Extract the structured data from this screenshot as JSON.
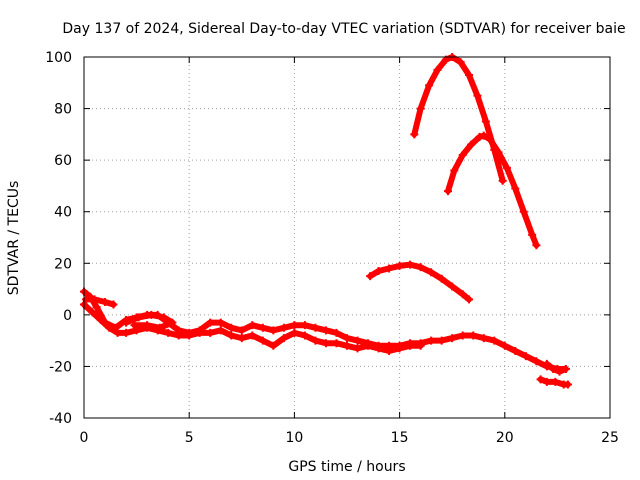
{
  "chart_data": {
    "type": "scatter",
    "title": "Day 137 of 2024, Sidereal Day-to-day VTEC variation (SDTVAR) for receiver baie",
    "xlabel": "GPS time / hours",
    "ylabel": "SDTVAR / TECUs",
    "xlim": [
      0,
      25
    ],
    "ylim": [
      -40,
      100
    ],
    "xticks": [
      0,
      5,
      10,
      15,
      20,
      25
    ],
    "yticks": [
      -40,
      -20,
      0,
      20,
      40,
      60,
      80,
      100
    ],
    "grid": true,
    "series_color": "#ff0000",
    "series": [
      {
        "name": "arc-peak-100",
        "x": [
          15.7,
          16.0,
          16.4,
          16.8,
          17.2,
          17.5,
          17.9,
          18.3,
          18.7,
          19.1,
          19.5,
          19.9
        ],
        "y": [
          70,
          80,
          89,
          95,
          99,
          100,
          98,
          93,
          85,
          75,
          64,
          52
        ]
      },
      {
        "name": "arc-peak-70",
        "x": [
          17.3,
          17.6,
          18.0,
          18.4,
          18.8,
          19.0,
          19.3,
          19.7,
          20.1,
          20.5,
          20.9,
          21.3,
          21.5
        ],
        "y": [
          48,
          56,
          62,
          66,
          69,
          69.5,
          68,
          63,
          57,
          49,
          40,
          31,
          27
        ]
      },
      {
        "name": "arc-peak-20",
        "x": [
          13.6,
          14.0,
          14.5,
          15.0,
          15.5,
          16.0,
          16.5,
          17.0,
          17.5,
          18.0,
          18.3
        ],
        "y": [
          15,
          17,
          18,
          19,
          19.5,
          18.5,
          16.5,
          14,
          11,
          8,
          6
        ]
      },
      {
        "name": "arc-upper-band",
        "x": [
          0,
          0.3,
          0.6,
          1.0,
          1.5,
          2.0,
          2.5,
          3.0,
          3.5,
          4.0,
          4.5,
          5.0,
          5.5,
          6.0,
          6.5,
          7.0,
          7.5,
          8.0,
          8.5,
          9.0,
          9.5,
          10.0,
          10.5,
          11.0,
          11.5,
          12.0,
          12.5,
          13.0,
          13.5,
          14.0,
          14.5,
          15.0,
          15.5,
          16.0,
          16.5,
          17.0,
          17.5,
          18.0,
          18.5,
          19.0,
          19.5,
          20.0,
          20.5,
          21.0,
          21.5,
          22.0,
          22.5,
          22.9
        ],
        "y": [
          9,
          7,
          3,
          -3,
          -5,
          -2,
          -1,
          0,
          0,
          -3,
          -6,
          -7,
          -6,
          -3,
          -3,
          -5,
          -6,
          -4,
          -5,
          -6,
          -5,
          -4,
          -4,
          -5,
          -6,
          -7,
          -9,
          -10,
          -11,
          -12,
          -12,
          -12,
          -11,
          -11,
          -10,
          -10,
          -9,
          -8,
          -8,
          -9,
          -10,
          -12,
          -14,
          -16,
          -18,
          -20,
          -21,
          -21
        ]
      },
      {
        "name": "arc-lower-band",
        "x": [
          0,
          0.4,
          0.8,
          1.2,
          1.6,
          2.0,
          2.5,
          3.0,
          3.5,
          4.0,
          4.5,
          5.0,
          5.5,
          6.0,
          6.5,
          7.0,
          7.5,
          8.0,
          8.5,
          9.0,
          9.5,
          10.0,
          10.5,
          11.0,
          11.5,
          12.0,
          12.5,
          13.0,
          13.5,
          14.0,
          14.5,
          15.0,
          15.5,
          16.0
        ],
        "y": [
          4,
          1,
          -2,
          -5,
          -7,
          -7,
          -6,
          -5,
          -6,
          -7,
          -8,
          -8,
          -7,
          -7,
          -6,
          -8,
          -9,
          -8,
          -10,
          -12,
          -9,
          -7,
          -8,
          -10,
          -11,
          -11,
          -12,
          -13,
          -12,
          -13,
          -14,
          -13,
          -12,
          -12
        ]
      },
      {
        "name": "arc-short-top",
        "x": [
          0.1,
          0.5,
          1.0,
          1.4
        ],
        "y": [
          6,
          6,
          5,
          4
        ]
      },
      {
        "name": "arc-mid-loop",
        "x": [
          2.0,
          2.6,
          3.2,
          3.8,
          4.2,
          3.6,
          3.0,
          2.4
        ],
        "y": [
          -3,
          -1,
          0,
          -1,
          -3,
          -5,
          -4,
          -4
        ]
      },
      {
        "name": "arc-end-low",
        "x": [
          21.7,
          22.0,
          22.4,
          22.8,
          23.0
        ],
        "y": [
          -25,
          -26,
          -26,
          -27,
          -27
        ]
      },
      {
        "name": "arc-end-drop",
        "x": [
          22.0,
          22.3,
          22.6,
          22.9
        ],
        "y": [
          -19,
          -21,
          -22,
          -21
        ]
      }
    ]
  }
}
